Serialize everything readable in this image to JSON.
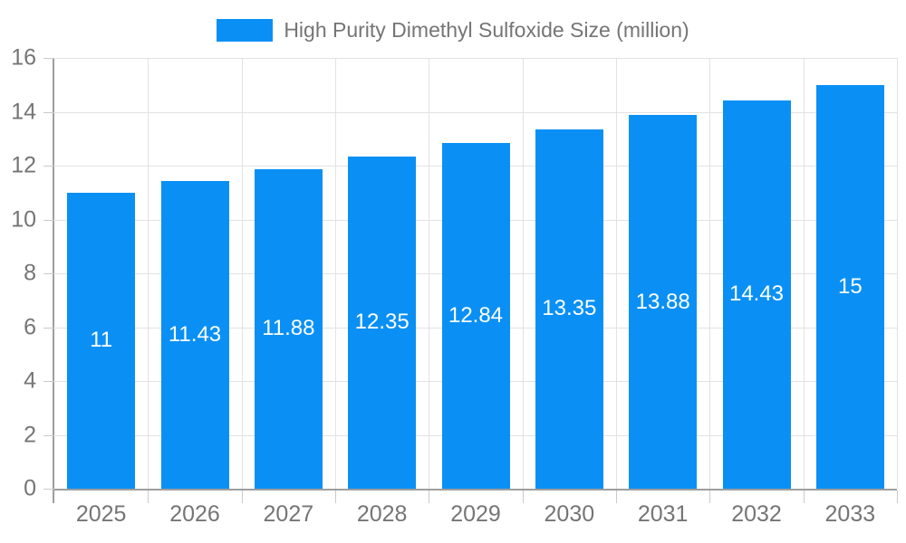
{
  "chart_data": {
    "type": "bar",
    "title": "High Purity Dimethyl Sulfoxide Size (million)",
    "categories": [
      "2025",
      "2026",
      "2027",
      "2028",
      "2029",
      "2030",
      "2031",
      "2032",
      "2033"
    ],
    "values": [
      11,
      11.43,
      11.88,
      12.35,
      12.84,
      13.35,
      13.88,
      14.43,
      15
    ],
    "xlabel": "",
    "ylabel": "",
    "ylim": [
      0,
      16
    ],
    "ytick_step": 2,
    "grid": true,
    "legend_position": "top-center",
    "bar_value_labels_inside": true,
    "colors": {
      "bar": "#0A90F5",
      "bar_label": "#FFFFFF",
      "axis": "#9E9E9E",
      "gridline": "#E2E2E2",
      "tick": "#CACACA",
      "label_text": "#757575",
      "background": "#FFFFFF"
    }
  }
}
